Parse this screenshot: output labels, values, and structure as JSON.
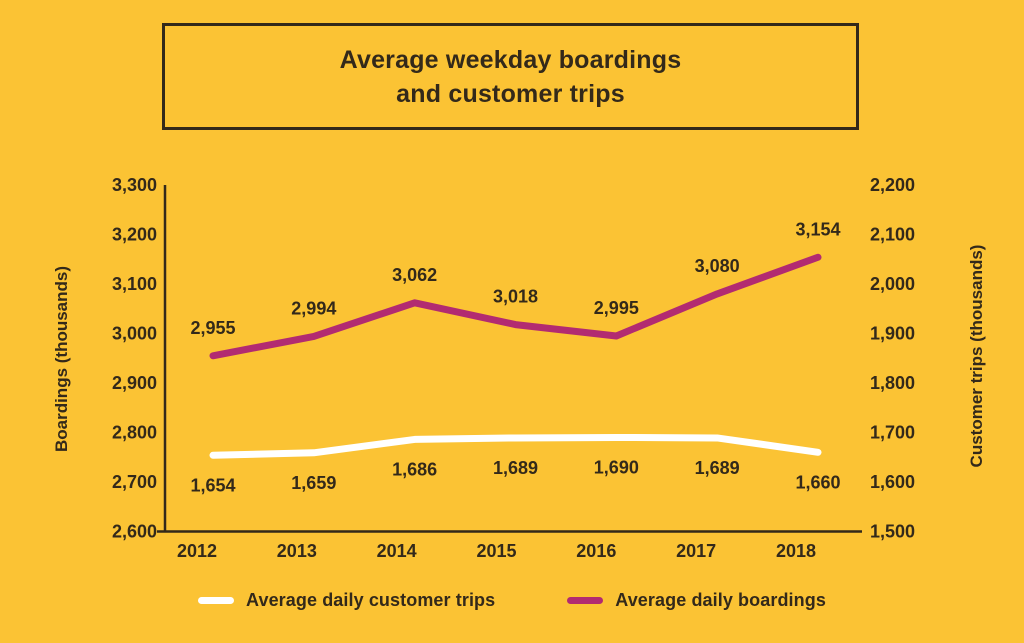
{
  "title": {
    "text": "Average weekday boardings\nand customer trips"
  },
  "colors": {
    "background": "#FBC334",
    "text": "#33291A",
    "axis": "#33291A",
    "boardings_line": "#B22B71",
    "customer_trips_line": "#FFFFFF"
  },
  "chart_data": {
    "type": "line",
    "title": "Average weekday boardings and customer trips",
    "categories": [
      "2012",
      "2013",
      "2014",
      "2015",
      "2016",
      "2017",
      "2018"
    ],
    "series": [
      {
        "name": "Average daily boardings",
        "axis": "left",
        "color": "#B22B71",
        "values": [
          2955,
          2994,
          3062,
          3018,
          2995,
          3080,
          3154
        ],
        "label_position": "above"
      },
      {
        "name": "Average daily customer trips",
        "axis": "right",
        "color": "#FFFFFF",
        "values": [
          1654,
          1659,
          1686,
          1689,
          1690,
          1689,
          1660
        ],
        "label_position": "below"
      }
    ],
    "axes": {
      "left": {
        "label": "Boardings (thousands)",
        "min": 2600,
        "max": 3300,
        "step": 100
      },
      "right": {
        "label": "Customer trips (thousands)",
        "min": 1500,
        "max": 2200,
        "step": 100
      }
    },
    "grid": false,
    "legend_position": "bottom",
    "legend": [
      {
        "label": "Average daily customer trips",
        "color": "#FFFFFF"
      },
      {
        "label": "Average daily boardings",
        "color": "#B22B71"
      }
    ]
  }
}
